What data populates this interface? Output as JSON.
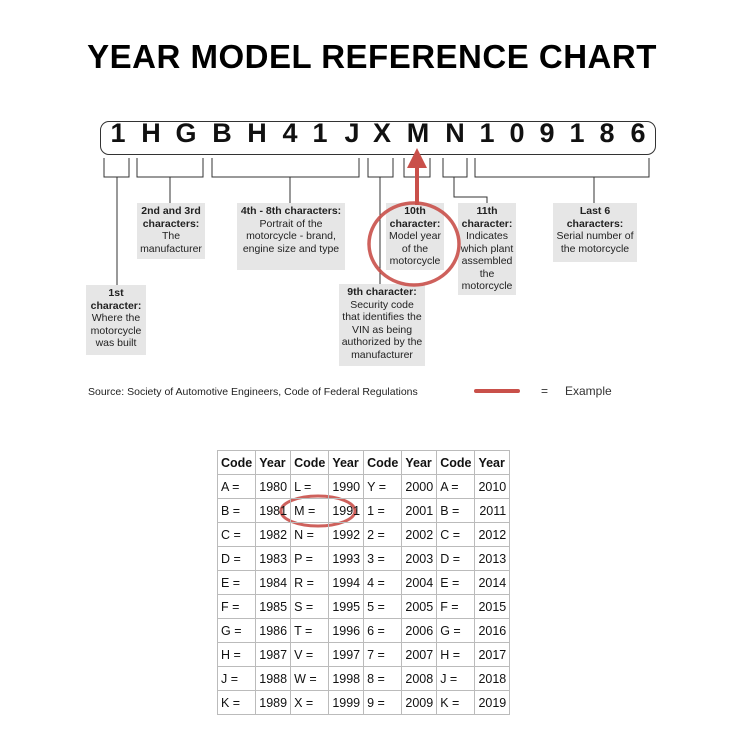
{
  "title": "YEAR MODEL REFERENCE CHART",
  "vin": [
    "1",
    "H",
    "G",
    "B",
    "H",
    "4",
    "1",
    "J",
    "X",
    "M",
    "N",
    "1",
    "0",
    "9",
    "1",
    "8",
    "6"
  ],
  "labels": {
    "first": {
      "head": "1st character:",
      "body": "Where the motorcycle was built"
    },
    "second_third": {
      "head": "2nd and 3rd characters:",
      "body": "The manufacturer"
    },
    "fourth_eighth": {
      "head": "4th - 8th characters:",
      "body": "Portrait of the motorcycle - brand, engine size and type"
    },
    "ninth": {
      "head": "9th character:",
      "body": "Security code that identifies the VIN as being authorized by the manufacturer"
    },
    "tenth": {
      "head": "10th character:",
      "body": "Model year of the motorcycle"
    },
    "eleventh": {
      "head": "11th character:",
      "body": "Indicates which plant assembled the motorcycle"
    },
    "last6": {
      "head": "Last 6 characters:",
      "body": "Serial number of the motorcycle"
    }
  },
  "source": "Source:  Society of Automotive Engineers, Code of Federal Regulations",
  "legend": {
    "equals": "=",
    "example": "Example",
    "color": "#c9504a"
  },
  "table": {
    "headers": [
      "Code",
      "Year",
      "Code",
      "Year",
      "Code",
      "Year",
      "Code",
      "Year"
    ],
    "rows": [
      [
        "A =",
        "1980",
        "L =",
        "1990",
        "Y =",
        "2000",
        "A =",
        "2010"
      ],
      [
        "B =",
        "1981",
        "M =",
        "1991",
        "1 =",
        "2001",
        "B =",
        "2011"
      ],
      [
        "C =",
        "1982",
        "N =",
        "1992",
        "2 =",
        "2002",
        "C =",
        "2012"
      ],
      [
        "D =",
        "1983",
        "P =",
        "1993",
        "3 =",
        "2003",
        "D =",
        "2013"
      ],
      [
        "E =",
        "1984",
        "R =",
        "1994",
        "4 =",
        "2004",
        "E =",
        "2014"
      ],
      [
        "F =",
        "1985",
        "S =",
        "1995",
        "5 =",
        "2005",
        "F =",
        "2015"
      ],
      [
        "G =",
        "1986",
        "T =",
        "1996",
        "6 =",
        "2006",
        "G =",
        "2016"
      ],
      [
        "H =",
        "1987",
        "V =",
        "1997",
        "7 =",
        "2007",
        "H =",
        "2017"
      ],
      [
        "J =",
        "1988",
        "W =",
        "1998",
        "8 =",
        "2008",
        "J =",
        "2018"
      ],
      [
        "K =",
        "1989",
        "X =",
        "1999",
        "9 =",
        "2009",
        "K =",
        "2019"
      ]
    ]
  }
}
